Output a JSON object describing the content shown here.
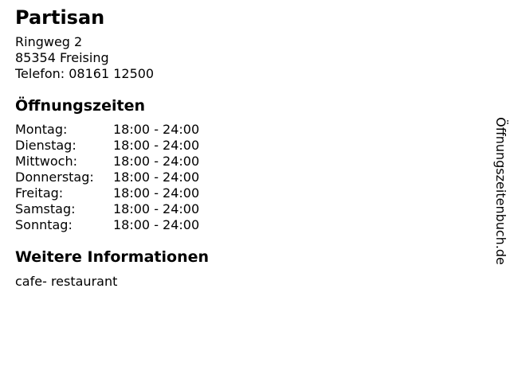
{
  "header": {
    "name": "Partisan",
    "street": "Ringweg 2",
    "city": "85354 Freising",
    "phone": "Telefon: 08161 12500"
  },
  "hours": {
    "heading": "Öffnungszeiten",
    "rows": [
      {
        "day": "Montag:",
        "time": "18:00 - 24:00"
      },
      {
        "day": "Dienstag:",
        "time": "18:00 - 24:00"
      },
      {
        "day": "Mittwoch:",
        "time": "18:00 - 24:00"
      },
      {
        "day": "Donnerstag:",
        "time": "18:00 - 24:00"
      },
      {
        "day": "Freitag:",
        "time": "18:00 - 24:00"
      },
      {
        "day": "Samstag:",
        "time": "18:00 - 24:00"
      },
      {
        "day": "Sonntag:",
        "time": "18:00 - 24:00"
      }
    ]
  },
  "info": {
    "heading": "Weitere Informationen",
    "text": "cafe- restaurant"
  },
  "watermark": "Öffnungszeitenbuch.de",
  "colors": {
    "text": "#000000",
    "background": "#ffffff"
  }
}
